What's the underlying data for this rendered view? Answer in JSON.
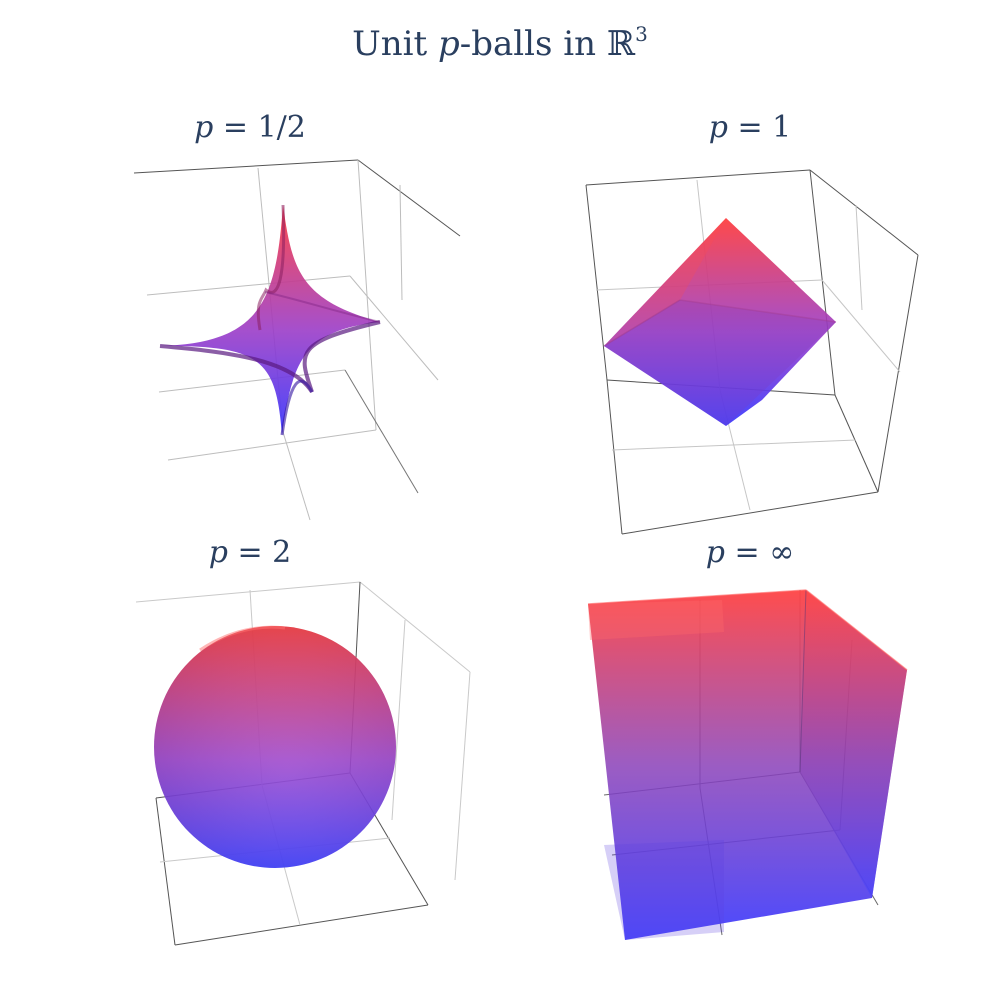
{
  "title": {
    "prefix": "Unit ",
    "var": "p",
    "mid": "-balls in ",
    "space": "ℝ",
    "sup": "3"
  },
  "colors": {
    "low": "#3c3cff",
    "high": "#ff4040",
    "axis_dark": "#444444",
    "grid": "#cfcfcf",
    "text": "#2a3f5f"
  },
  "chart_data": [
    {
      "type": "surface",
      "shape": "astroid",
      "label": {
        "var": "p",
        "rest": " = 1/2"
      },
      "p": 0.5,
      "colorscale": [
        "#3c3cff",
        "#ff4040"
      ]
    },
    {
      "type": "surface",
      "shape": "octahedron",
      "label": {
        "var": "p",
        "rest": " = 1"
      },
      "p": 1,
      "colorscale": [
        "#3c3cff",
        "#ff4040"
      ]
    },
    {
      "type": "surface",
      "shape": "sphere",
      "label": {
        "var": "p",
        "rest": " = 2"
      },
      "p": 2,
      "colorscale": [
        "#3c3cff",
        "#ff4040"
      ]
    },
    {
      "type": "surface",
      "shape": "cube",
      "label": {
        "var": "p",
        "rest": " = ∞"
      },
      "p": "∞",
      "colorscale": [
        "#3c3cff",
        "#ff4040"
      ]
    }
  ]
}
